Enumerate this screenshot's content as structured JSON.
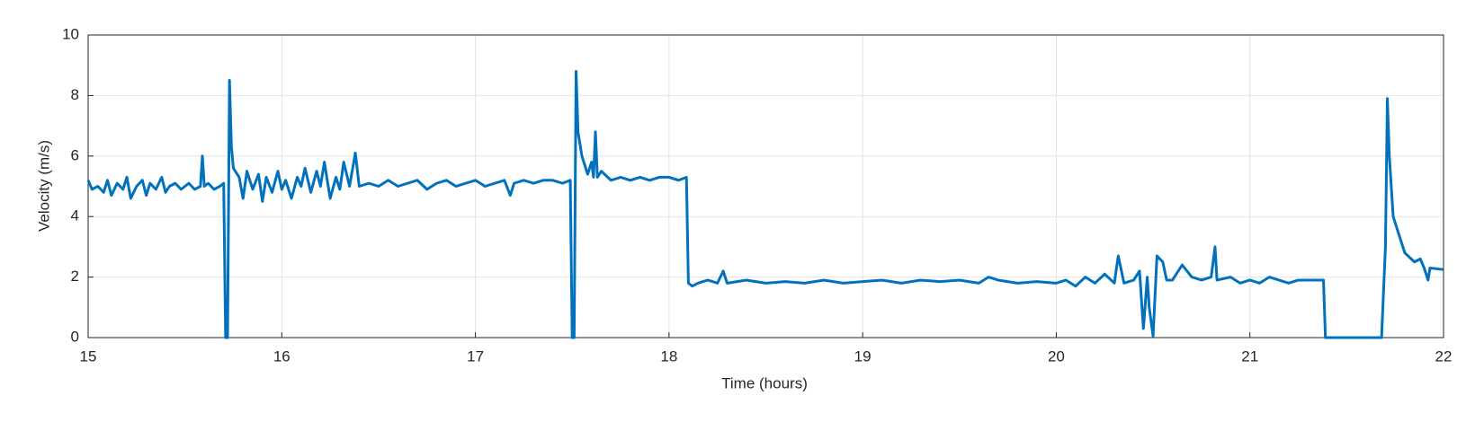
{
  "chart_data": {
    "type": "line",
    "x_label": "Time (hours)",
    "y_label": "Velocity (m/s)",
    "color": "#0072bd",
    "grid": true,
    "xlim": [
      15,
      22
    ],
    "xticks": [
      15,
      16,
      17,
      18,
      19,
      20,
      21,
      22
    ],
    "ylim": [
      0,
      10
    ],
    "yticks": [
      0,
      2,
      4,
      6,
      8,
      10
    ],
    "x": [
      15.0,
      15.02,
      15.05,
      15.08,
      15.1,
      15.12,
      15.15,
      15.18,
      15.2,
      15.22,
      15.25,
      15.28,
      15.3,
      15.32,
      15.35,
      15.38,
      15.4,
      15.42,
      15.45,
      15.48,
      15.5,
      15.52,
      15.55,
      15.58,
      15.59,
      15.6,
      15.62,
      15.65,
      15.68,
      15.7,
      15.71,
      15.72,
      15.73,
      15.74,
      15.75,
      15.78,
      15.8,
      15.82,
      15.85,
      15.88,
      15.9,
      15.92,
      15.95,
      15.98,
      16.0,
      16.02,
      16.05,
      16.08,
      16.1,
      16.12,
      16.15,
      16.18,
      16.2,
      16.22,
      16.25,
      16.28,
      16.3,
      16.32,
      16.35,
      16.38,
      16.4,
      16.45,
      16.5,
      16.55,
      16.6,
      16.65,
      16.7,
      16.75,
      16.8,
      16.85,
      16.9,
      16.95,
      17.0,
      17.05,
      17.1,
      17.15,
      17.18,
      17.2,
      17.25,
      17.3,
      17.35,
      17.4,
      17.45,
      17.49,
      17.5,
      17.51,
      17.52,
      17.53,
      17.55,
      17.58,
      17.6,
      17.61,
      17.62,
      17.63,
      17.65,
      17.7,
      17.75,
      17.8,
      17.85,
      17.9,
      17.95,
      18.0,
      18.05,
      18.09,
      18.1,
      18.12,
      18.15,
      18.2,
      18.25,
      18.28,
      18.3,
      18.4,
      18.5,
      18.6,
      18.7,
      18.8,
      18.9,
      19.0,
      19.1,
      19.2,
      19.3,
      19.4,
      19.5,
      19.6,
      19.65,
      19.7,
      19.8,
      19.9,
      20.0,
      20.05,
      20.1,
      20.15,
      20.2,
      20.25,
      20.3,
      20.32,
      20.35,
      20.4,
      20.43,
      20.45,
      20.47,
      20.48,
      20.5,
      20.52,
      20.55,
      20.57,
      20.6,
      20.65,
      20.7,
      20.75,
      20.8,
      20.82,
      20.83,
      20.9,
      20.95,
      21.0,
      21.05,
      21.1,
      21.15,
      21.2,
      21.25,
      21.3,
      21.38,
      21.39,
      21.5,
      21.6,
      21.68,
      21.7,
      21.71,
      21.72,
      21.74,
      21.76,
      21.8,
      21.85,
      21.88,
      21.9,
      21.92,
      21.93,
      22.0
    ],
    "values": [
      5.2,
      4.9,
      5.0,
      4.8,
      5.2,
      4.7,
      5.1,
      4.9,
      5.3,
      4.6,
      5.0,
      5.2,
      4.7,
      5.1,
      4.9,
      5.3,
      4.8,
      5.0,
      5.1,
      4.9,
      5.0,
      5.1,
      4.9,
      5.0,
      6.0,
      5.0,
      5.1,
      4.9,
      5.0,
      5.1,
      0,
      0,
      8.5,
      6.3,
      5.6,
      5.3,
      4.6,
      5.5,
      4.9,
      5.4,
      4.5,
      5.3,
      4.8,
      5.5,
      4.9,
      5.2,
      4.6,
      5.3,
      5.0,
      5.6,
      4.8,
      5.5,
      5.0,
      5.8,
      4.6,
      5.3,
      4.9,
      5.8,
      5.0,
      6.1,
      5.0,
      5.1,
      5.0,
      5.2,
      5.0,
      5.1,
      5.2,
      4.9,
      5.1,
      5.2,
      5.0,
      5.1,
      5.2,
      5.0,
      5.1,
      5.2,
      4.7,
      5.1,
      5.2,
      5.1,
      5.2,
      5.2,
      5.1,
      5.2,
      0,
      0,
      8.8,
      6.8,
      6.0,
      5.4,
      5.8,
      5.3,
      6.8,
      5.3,
      5.5,
      5.2,
      5.3,
      5.2,
      5.3,
      5.2,
      5.3,
      5.3,
      5.2,
      5.3,
      1.8,
      1.7,
      1.8,
      1.9,
      1.8,
      2.2,
      1.8,
      1.9,
      1.8,
      1.85,
      1.8,
      1.9,
      1.8,
      1.85,
      1.9,
      1.8,
      1.9,
      1.85,
      1.9,
      1.8,
      2.0,
      1.9,
      1.8,
      1.85,
      1.8,
      1.9,
      1.7,
      2.0,
      1.8,
      2.1,
      1.8,
      2.7,
      1.8,
      1.9,
      2.2,
      0.3,
      2.0,
      1.0,
      0.05,
      2.7,
      2.5,
      1.9,
      1.9,
      2.4,
      2.0,
      1.9,
      2.0,
      3.0,
      1.9,
      2.0,
      1.8,
      1.9,
      1.8,
      2.0,
      1.9,
      1.8,
      1.9,
      1.9,
      1.9,
      0,
      0,
      0,
      0,
      3.0,
      7.9,
      6.0,
      4.0,
      3.6,
      2.8,
      2.5,
      2.6,
      2.3,
      1.9,
      2.3,
      2.25
    ]
  }
}
